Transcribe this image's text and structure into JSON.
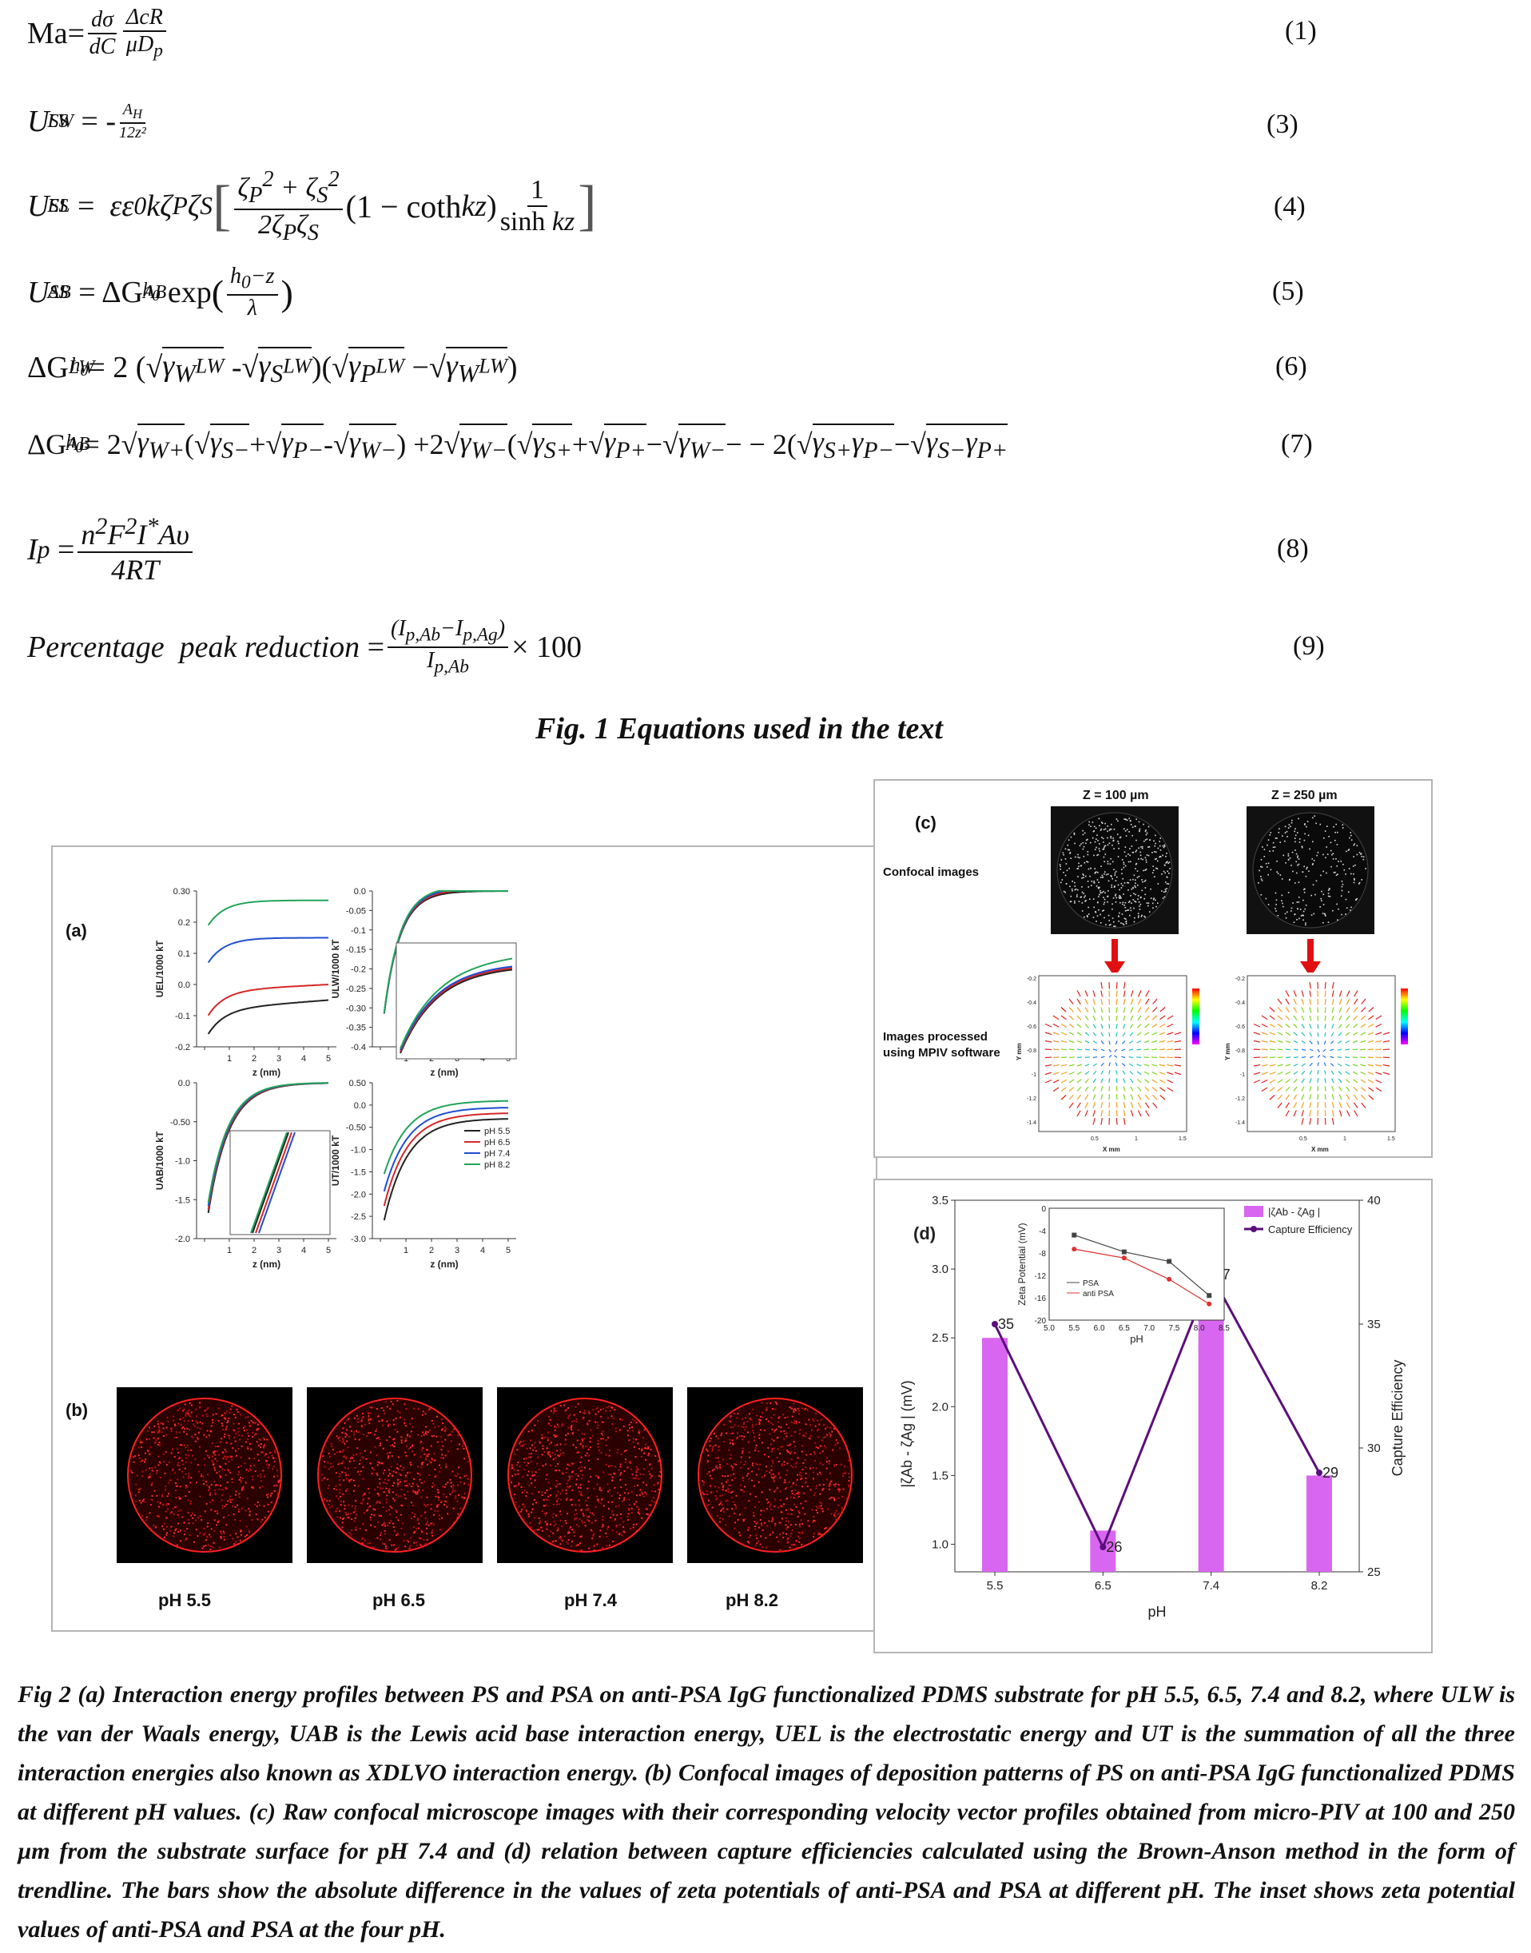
{
  "equations": [
    {
      "num": "(1)",
      "text": "Ma= dσ/dC · ΔcR/μDp"
    },
    {
      "num": "(3)",
      "text": "U^SS_LW = - A_H / 12z²"
    },
    {
      "num": "(4)",
      "text": "U^SS_EL = εε0kζPζS [ (ζP²+ζS²)/(2ζPζS) (1 − cothkz) 1/sinh kz ]"
    },
    {
      "num": "(5)",
      "text": "U^SS_AB = ΔG^AB_h0 exp((h0−z)/λ)"
    },
    {
      "num": "(6)",
      "text": "ΔG^LW_h0 = 2 (√γW^LW - √γS^LW)(√γP^LW − √γW^LW)"
    },
    {
      "num": "(7)",
      "text": "ΔG^AB_h0 = 2 √γW+(√γS- + √γP- - √γW-) + 2√γW-(√γS+ + √γP+ − √γW- − 2(√γS+γP- − √γS-γP+"
    },
    {
      "num": "(8)",
      "text": "Ip = n²F²I*Aυ / 4RT"
    },
    {
      "num": "(9)",
      "text": "Percentage peak reduction = (Ip,Ab−Ip,Ag)/Ip,Ab × 100"
    }
  ],
  "fig1_caption": "Fig. 1  Equations used in the text",
  "panel_a": {
    "label": "(a)",
    "ylabels": [
      "UEL/1000 kT",
      "ULW/1000 kT",
      "UAB/1000 kT",
      "UT/1000 kT"
    ],
    "xlabel": "z (nm)",
    "legend": [
      "pH 5.5",
      "pH 6.5",
      "pH 7.4",
      "pH 8.2"
    ],
    "colors": [
      "#222222",
      "#d62728",
      "#1f4fd0",
      "#22a35a"
    ]
  },
  "panel_b": {
    "label": "(b)",
    "images": [
      "pH 5.5",
      "pH 6.5",
      "pH 7.4",
      "pH 8.2"
    ]
  },
  "panel_c": {
    "label": "(c)",
    "titles": [
      "Z = 100 µm",
      "Z = 250 µm"
    ],
    "row1": "Confocal images",
    "row2a": "Images processed",
    "row2b": "using MPIV software",
    "x_axis": "X mm",
    "y_axis": "Y mm"
  },
  "chart_data": {
    "type": "bar",
    "label": "(d)",
    "categories": [
      "5.5",
      "6.5",
      "7.4",
      "8.2"
    ],
    "xlabel": "pH",
    "ylabel_left": "|ζAb - ζAg | (mV)",
    "ylabel_right": "Capture Efficiency",
    "ylim_left": [
      0.8,
      3.5
    ],
    "ylim_right": [
      25,
      40
    ],
    "series": [
      {
        "name": "|ζAb - ζAg |",
        "values": [
          2.5,
          1.1,
          3.22,
          1.5
        ],
        "color": "#d966f0"
      },
      {
        "name": "Capture Efficiency",
        "values": [
          35,
          26,
          37,
          29
        ],
        "color": "#5b0f7a"
      }
    ],
    "point_labels": [
      "35",
      "26",
      "37",
      "29"
    ],
    "inset": {
      "xlabel": "pH",
      "ylabel": "Zeta Potential (mV)",
      "xlim": [
        5.0,
        8.5
      ],
      "ylim": [
        -20,
        0
      ],
      "x": [
        5.5,
        6.5,
        7.4,
        8.2
      ],
      "series": [
        {
          "name": "PSA",
          "values": [
            -4.8,
            -7.8,
            -9.5,
            -15.6
          ],
          "color": "#444444"
        },
        {
          "name": "anti PSA",
          "values": [
            -7.3,
            -8.9,
            -12.7,
            -17.1
          ],
          "color": "#e03030"
        }
      ]
    }
  },
  "fig2_caption": "Fig 2 (a) Interaction energy profiles between PS and PSA on anti-PSA IgG functionalized PDMS substrate for pH 5.5, 6.5, 7.4 and 8.2, where ULW is the van der Waals energy, UAB is the Lewis acid base interaction energy, UEL is the electrostatic energy and UT is the summation of all the three interaction energies also known as XDLVO interaction energy.  (b) Confocal images of deposition patterns of PS on anti-PSA IgG functionalized PDMS at different pH values. (c) Raw confocal microscope images with their corresponding velocity vector profiles obtained from micro-PIV at 100 and 250 µm from the substrate surface for pH 7.4 and (d) relation between capture efficiencies calculated using the Brown-Anson method in the form of trendline.  The bars show the absolute difference in the values of zeta potentials of anti-PSA and PSA at different pH.  The inset shows zeta potential values of anti-PSA and PSA at the four pH."
}
